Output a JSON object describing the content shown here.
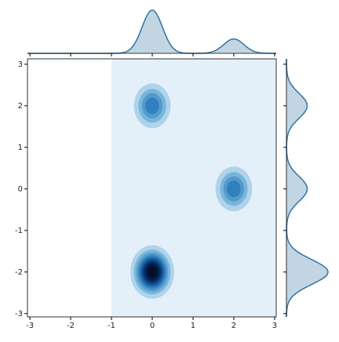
{
  "chart_data": {
    "type": "kde-joint",
    "components": [
      {
        "x": 0,
        "y": 2,
        "sdx": 0.25,
        "sdy": 0.3,
        "weight": 1
      },
      {
        "x": 2,
        "y": 0,
        "sdx": 0.25,
        "sdy": 0.3,
        "weight": 1
      },
      {
        "x": 0,
        "y": -2,
        "sdx": 0.25,
        "sdy": 0.3,
        "weight": 2
      }
    ],
    "shaded_xlim": [
      -1,
      3.04
    ],
    "color": "#3274a1",
    "xlim": [
      -3.06,
      3.04
    ],
    "ylim": [
      -3.08,
      3.13
    ],
    "xticks": [
      -3,
      -2,
      -1,
      0,
      1,
      2,
      3
    ],
    "yticks": [
      -3,
      -2,
      -1,
      0,
      1,
      2,
      3
    ]
  }
}
